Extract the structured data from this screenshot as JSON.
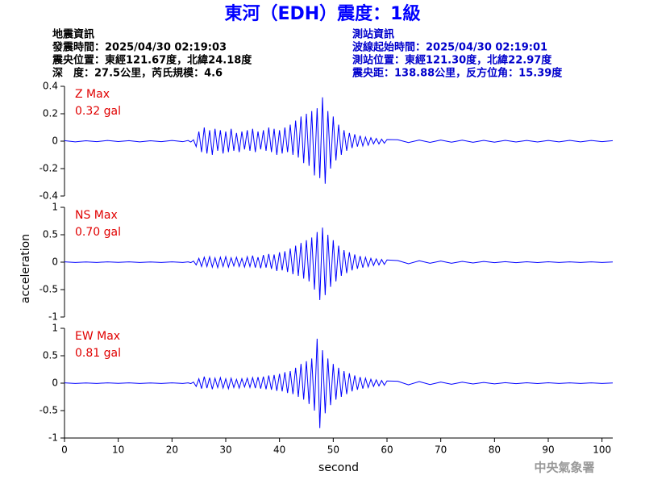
{
  "header": {
    "title": "東河（EDH）震度：1級",
    "event": [
      "地震資訊",
      "發震時間：2025/04/30 02:19:03",
      "震央位置：東經121.67度，北緯24.18度",
      "深　度：27.5公里，芮氏規模：4.6"
    ],
    "station": [
      "測站資訊",
      "波線起始時間：2025/04/30 02:19:01",
      "測站位置：東經121.30度，北緯22.97度",
      "震央距：138.88公里，反方位角：15.39度"
    ],
    "footer": "中央氣象署"
  },
  "chart_data": [
    {
      "type": "line",
      "color": "#0000ff",
      "annotations": [
        "Z Max",
        "0.32 gal"
      ],
      "xlim": [
        0,
        102
      ],
      "ylim": [
        -0.4,
        0.4
      ],
      "yticks": [
        -0.4,
        -0.2,
        0,
        0.2,
        0.4
      ],
      "x": [
        0,
        2,
        4,
        6,
        8,
        10,
        12,
        14,
        16,
        18,
        20,
        22,
        23,
        23.5,
        24,
        24.5,
        25,
        25.5,
        26,
        26.5,
        27,
        27.5,
        28,
        28.5,
        29,
        29.5,
        30,
        30.5,
        31,
        31.5,
        32,
        32.5,
        33,
        33.5,
        34,
        34.5,
        35,
        35.5,
        36,
        36.5,
        37,
        37.5,
        38,
        38.5,
        39,
        39.5,
        40,
        40.5,
        41,
        41.5,
        42,
        42.5,
        43,
        43.5,
        44,
        44.5,
        45,
        45.5,
        46,
        46.5,
        47,
        47.5,
        48,
        48.5,
        49,
        49.5,
        50,
        50.5,
        51,
        51.5,
        52,
        52.5,
        53,
        53.5,
        54,
        54.5,
        55,
        55.5,
        56,
        56.5,
        57,
        57.5,
        58,
        58.5,
        59,
        59.5,
        60,
        62,
        64,
        66,
        68,
        70,
        72,
        74,
        76,
        78,
        80,
        82,
        84,
        86,
        88,
        90,
        92,
        94,
        96,
        98,
        100,
        102
      ],
      "values": [
        0.004,
        -0.005,
        0.003,
        -0.004,
        0.005,
        -0.003,
        0.004,
        -0.005,
        0.003,
        -0.004,
        0.005,
        -0.004,
        0.005,
        -0.006,
        0.01,
        -0.04,
        0.07,
        -0.08,
        0.1,
        -0.09,
        0.08,
        -0.1,
        0.09,
        -0.07,
        0.08,
        -0.09,
        0.07,
        -0.08,
        0.09,
        -0.07,
        0.06,
        -0.08,
        0.07,
        -0.06,
        0.08,
        -0.07,
        0.09,
        -0.08,
        0.07,
        -0.06,
        0.08,
        -0.07,
        0.1,
        -0.08,
        0.09,
        -0.1,
        0.08,
        -0.09,
        0.1,
        -0.08,
        0.12,
        -0.1,
        0.15,
        -0.12,
        0.18,
        -0.16,
        0.2,
        -0.18,
        0.22,
        -0.25,
        0.24,
        -0.27,
        0.32,
        -0.31,
        0.22,
        -0.2,
        0.18,
        -0.14,
        0.12,
        -0.1,
        0.08,
        -0.07,
        0.06,
        -0.05,
        0.05,
        -0.04,
        0.04,
        -0.035,
        0.03,
        -0.03,
        0.025,
        -0.02,
        0.02,
        -0.02,
        0.015,
        -0.015,
        0.012,
        0.01,
        -0.01,
        0.008,
        -0.009,
        0.008,
        -0.007,
        0.007,
        -0.008,
        0.006,
        -0.007,
        0.006,
        -0.006,
        0.005,
        -0.006,
        0.005,
        -0.005,
        0.006,
        -0.005,
        0.005,
        -0.004,
        0.004
      ]
    },
    {
      "type": "line",
      "color": "#0000ff",
      "annotations": [
        "NS Max",
        "0.70 gal"
      ],
      "ylabel": "acceleration",
      "xlim": [
        0,
        102
      ],
      "ylim": [
        -1,
        1
      ],
      "yticks": [
        -1,
        -0.5,
        0,
        0.5,
        1
      ],
      "x": [
        0,
        2,
        4,
        6,
        8,
        10,
        12,
        14,
        16,
        18,
        20,
        22,
        23,
        23.5,
        24,
        24.5,
        25,
        25.5,
        26,
        26.5,
        27,
        27.5,
        28,
        28.5,
        29,
        29.5,
        30,
        30.5,
        31,
        31.5,
        32,
        32.5,
        33,
        33.5,
        34,
        34.5,
        35,
        35.5,
        36,
        36.5,
        37,
        37.5,
        38,
        38.5,
        39,
        39.5,
        40,
        40.5,
        41,
        41.5,
        42,
        42.5,
        43,
        43.5,
        44,
        44.5,
        45,
        45.5,
        46,
        46.5,
        47,
        47.5,
        48,
        48.5,
        49,
        49.5,
        50,
        50.5,
        51,
        51.5,
        52,
        52.5,
        53,
        53.5,
        54,
        54.5,
        55,
        55.5,
        56,
        56.5,
        57,
        57.5,
        58,
        58.5,
        59,
        59.5,
        60,
        62,
        64,
        66,
        68,
        70,
        72,
        74,
        76,
        78,
        80,
        82,
        84,
        86,
        88,
        90,
        92,
        94,
        96,
        98,
        100,
        102
      ],
      "values": [
        0.005,
        -0.006,
        0.004,
        -0.005,
        0.006,
        -0.004,
        0.005,
        -0.006,
        0.004,
        -0.005,
        0.006,
        -0.005,
        0.006,
        -0.008,
        0.02,
        -0.05,
        0.07,
        -0.08,
        0.09,
        -0.08,
        0.1,
        -0.09,
        0.08,
        -0.1,
        0.09,
        -0.08,
        0.1,
        -0.09,
        0.08,
        -0.07,
        0.09,
        -0.08,
        0.07,
        -0.09,
        0.1,
        -0.08,
        0.12,
        -0.1,
        0.09,
        -0.11,
        0.13,
        -0.1,
        0.15,
        -0.12,
        0.14,
        -0.16,
        0.18,
        -0.15,
        0.2,
        -0.18,
        0.25,
        -0.22,
        0.3,
        -0.25,
        0.35,
        -0.3,
        0.4,
        -0.35,
        0.45,
        -0.5,
        0.55,
        -0.69,
        0.63,
        -0.6,
        0.5,
        -0.45,
        0.4,
        -0.35,
        0.3,
        -0.25,
        0.22,
        -0.2,
        0.18,
        -0.15,
        0.14,
        -0.12,
        0.11,
        -0.1,
        0.09,
        -0.08,
        0.07,
        -0.06,
        0.06,
        -0.05,
        0.05,
        -0.04,
        0.04,
        0.03,
        -0.03,
        0.025,
        -0.02,
        0.02,
        -0.02,
        0.015,
        -0.015,
        0.012,
        -0.01,
        0.01,
        -0.01,
        0.008,
        -0.008,
        0.007,
        -0.006,
        0.006,
        -0.005,
        0.005,
        -0.005,
        0.004
      ]
    },
    {
      "type": "line",
      "color": "#0000ff",
      "annotations": [
        "EW Max",
        "0.81 gal"
      ],
      "xlabel": "second",
      "xlim": [
        0,
        102
      ],
      "xticks": [
        0,
        10,
        20,
        30,
        40,
        50,
        60,
        70,
        80,
        90,
        100
      ],
      "ylim": [
        -1,
        1
      ],
      "yticks": [
        -1,
        -0.5,
        0,
        0.5,
        1
      ],
      "x": [
        0,
        2,
        4,
        6,
        8,
        10,
        12,
        14,
        16,
        18,
        20,
        22,
        23,
        23.5,
        24,
        24.5,
        25,
        25.5,
        26,
        26.5,
        27,
        27.5,
        28,
        28.5,
        29,
        29.5,
        30,
        30.5,
        31,
        31.5,
        32,
        32.5,
        33,
        33.5,
        34,
        34.5,
        35,
        35.5,
        36,
        36.5,
        37,
        37.5,
        38,
        38.5,
        39,
        39.5,
        40,
        40.5,
        41,
        41.5,
        42,
        42.5,
        43,
        43.5,
        44,
        44.5,
        45,
        45.5,
        46,
        46.5,
        47,
        47.5,
        48,
        48.5,
        49,
        49.5,
        50,
        50.5,
        51,
        51.5,
        52,
        52.5,
        53,
        53.5,
        54,
        54.5,
        55,
        55.5,
        56,
        56.5,
        57,
        57.5,
        58,
        58.5,
        59,
        59.5,
        60,
        62,
        64,
        66,
        68,
        70,
        72,
        74,
        76,
        78,
        80,
        82,
        84,
        86,
        88,
        90,
        92,
        94,
        96,
        98,
        100,
        102
      ],
      "values": [
        0.005,
        -0.006,
        0.004,
        -0.005,
        0.006,
        -0.004,
        0.005,
        -0.006,
        0.004,
        -0.005,
        0.006,
        -0.005,
        0.006,
        -0.008,
        0.02,
        -0.06,
        0.08,
        -0.1,
        0.12,
        -0.09,
        0.1,
        -0.11,
        0.09,
        -0.08,
        0.1,
        -0.09,
        0.08,
        -0.1,
        0.09,
        -0.08,
        0.07,
        -0.09,
        0.08,
        -0.07,
        0.09,
        -0.08,
        0.1,
        -0.09,
        0.11,
        -0.1,
        0.12,
        -0.11,
        0.14,
        -0.12,
        0.15,
        -0.14,
        0.17,
        -0.15,
        0.2,
        -0.18,
        0.22,
        -0.2,
        0.28,
        -0.25,
        0.35,
        -0.3,
        0.4,
        -0.38,
        0.45,
        -0.5,
        0.81,
        -0.82,
        0.6,
        -0.55,
        0.45,
        -0.4,
        0.35,
        -0.3,
        0.28,
        -0.25,
        0.22,
        -0.2,
        0.18,
        -0.15,
        0.14,
        -0.12,
        0.11,
        -0.1,
        0.09,
        -0.08,
        0.07,
        -0.06,
        0.06,
        -0.05,
        0.05,
        -0.04,
        0.04,
        0.035,
        -0.03,
        0.03,
        -0.025,
        0.02,
        -0.02,
        0.018,
        -0.015,
        0.012,
        -0.012,
        0.01,
        -0.01,
        0.008,
        -0.008,
        0.007,
        -0.006,
        0.006,
        -0.005,
        0.005,
        -0.005,
        0.004
      ]
    }
  ]
}
